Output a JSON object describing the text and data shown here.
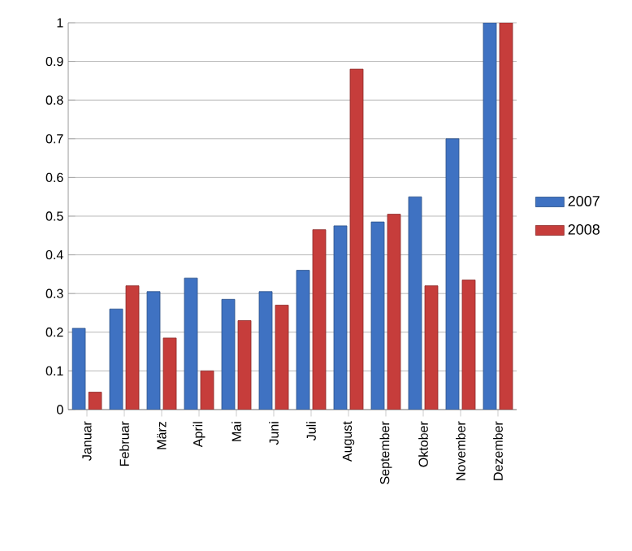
{
  "chart_data": {
    "type": "bar",
    "categories": [
      "Januar",
      "Februar",
      "März",
      "April",
      "Mai",
      "Juni",
      "Juli",
      "August",
      "September",
      "Oktober",
      "November",
      "Dezember"
    ],
    "series": [
      {
        "name": "2007",
        "color": "#3f72c2",
        "values": [
          0.21,
          0.26,
          0.305,
          0.34,
          0.285,
          0.305,
          0.36,
          0.475,
          0.485,
          0.55,
          0.7,
          1.0
        ]
      },
      {
        "name": "2008",
        "color": "#c63d3b",
        "values": [
          0.045,
          0.32,
          0.185,
          0.1,
          0.23,
          0.27,
          0.465,
          0.88,
          0.505,
          0.32,
          0.335,
          1.0
        ]
      }
    ],
    "ylim": [
      0,
      1
    ],
    "yticks": [
      0,
      0.1,
      0.2,
      0.3,
      0.4,
      0.5,
      0.6,
      0.7,
      0.8,
      0.9,
      1
    ],
    "grid": "y",
    "legend": "right"
  }
}
